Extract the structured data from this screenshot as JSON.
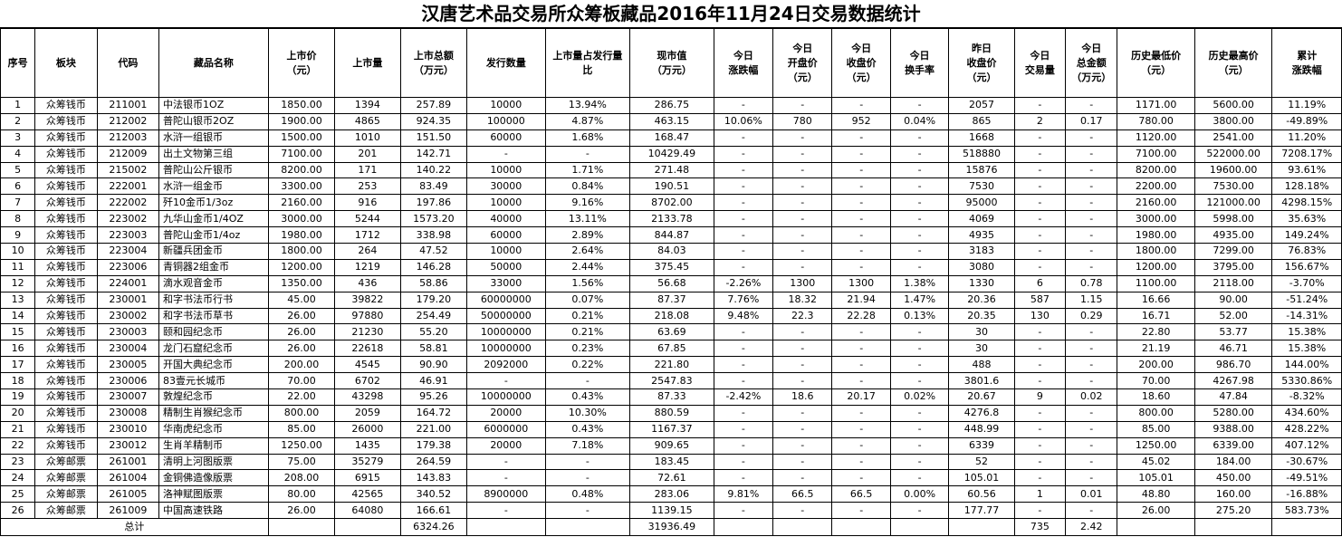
{
  "title": "汉唐艺术品交易所众筹板藏品2016年11月24日交易数据统计",
  "columns": [
    {
      "key": "seq",
      "label": "序号"
    },
    {
      "key": "board",
      "label": "板块"
    },
    {
      "key": "code",
      "label": "代码"
    },
    {
      "key": "name",
      "label": "藏品名称"
    },
    {
      "key": "list_price",
      "label": "上市价\n（元）"
    },
    {
      "key": "list_qty",
      "label": "上市量"
    },
    {
      "key": "list_total",
      "label": "上市总额\n（万元）"
    },
    {
      "key": "issue_qty",
      "label": "发行数量"
    },
    {
      "key": "ratio",
      "label": "上市量占发行量\n比"
    },
    {
      "key": "market_value",
      "label": "现市值\n（万元）"
    },
    {
      "key": "change",
      "label": "今日\n涨跌幅"
    },
    {
      "key": "open",
      "label": "今日\n开盘价\n（元）"
    },
    {
      "key": "close",
      "label": "今日\n收盘价\n（元）"
    },
    {
      "key": "turnover",
      "label": "今日\n换手率"
    },
    {
      "key": "prev_close",
      "label": "昨日\n收盘价\n（元）"
    },
    {
      "key": "volume",
      "label": "今日\n交易量"
    },
    {
      "key": "amount",
      "label": "今日\n总金额\n（万元）"
    },
    {
      "key": "hist_low",
      "label": "历史最低价\n（元）"
    },
    {
      "key": "hist_high",
      "label": "历史最高价\n（元）"
    },
    {
      "key": "cum_change",
      "label": "累计\n涨跌幅"
    }
  ],
  "rows": [
    [
      "1",
      "众筹钱币",
      "211001",
      "中法银币1OZ",
      "1850.00",
      "1394",
      "257.89",
      "10000",
      "13.94%",
      "286.75",
      "-",
      "-",
      "-",
      "-",
      "2057",
      "-",
      "-",
      "1171.00",
      "5600.00",
      "11.19%"
    ],
    [
      "2",
      "众筹钱币",
      "212002",
      "普陀山银币2OZ",
      "1900.00",
      "4865",
      "924.35",
      "100000",
      "4.87%",
      "463.15",
      "10.06%",
      "780",
      "952",
      "0.04%",
      "865",
      "2",
      "0.17",
      "780.00",
      "3800.00",
      "-49.89%"
    ],
    [
      "3",
      "众筹钱币",
      "212003",
      "水浒一组银币",
      "1500.00",
      "1010",
      "151.50",
      "60000",
      "1.68%",
      "168.47",
      "-",
      "-",
      "-",
      "-",
      "1668",
      "-",
      "-",
      "1120.00",
      "2541.00",
      "11.20%"
    ],
    [
      "4",
      "众筹钱币",
      "212009",
      "出土文物第三组",
      "7100.00",
      "201",
      "142.71",
      "-",
      "-",
      "10429.49",
      "-",
      "-",
      "-",
      "-",
      "518880",
      "-",
      "-",
      "7100.00",
      "522000.00",
      "7208.17%"
    ],
    [
      "5",
      "众筹钱币",
      "215002",
      "普陀山公斤银币",
      "8200.00",
      "171",
      "140.22",
      "10000",
      "1.71%",
      "271.48",
      "-",
      "-",
      "-",
      "-",
      "15876",
      "-",
      "-",
      "8200.00",
      "19600.00",
      "93.61%"
    ],
    [
      "6",
      "众筹钱币",
      "222001",
      "水浒一组金币",
      "3300.00",
      "253",
      "83.49",
      "30000",
      "0.84%",
      "190.51",
      "-",
      "-",
      "-",
      "-",
      "7530",
      "-",
      "-",
      "2200.00",
      "7530.00",
      "128.18%"
    ],
    [
      "7",
      "众筹钱币",
      "222002",
      "歼10金币1/3oz",
      "2160.00",
      "916",
      "197.86",
      "10000",
      "9.16%",
      "8702.00",
      "-",
      "-",
      "-",
      "-",
      "95000",
      "-",
      "-",
      "2160.00",
      "121000.00",
      "4298.15%"
    ],
    [
      "8",
      "众筹钱币",
      "223002",
      "九华山金币1/4OZ",
      "3000.00",
      "5244",
      "1573.20",
      "40000",
      "13.11%",
      "2133.78",
      "-",
      "-",
      "-",
      "-",
      "4069",
      "-",
      "-",
      "3000.00",
      "5998.00",
      "35.63%"
    ],
    [
      "9",
      "众筹钱币",
      "223003",
      "普陀山金币1/4oz",
      "1980.00",
      "1712",
      "338.98",
      "60000",
      "2.89%",
      "844.87",
      "-",
      "-",
      "-",
      "-",
      "4935",
      "-",
      "-",
      "1980.00",
      "4935.00",
      "149.24%"
    ],
    [
      "10",
      "众筹钱币",
      "223004",
      "新疆兵团金币",
      "1800.00",
      "264",
      "47.52",
      "10000",
      "2.64%",
      "84.03",
      "-",
      "-",
      "-",
      "-",
      "3183",
      "-",
      "-",
      "1800.00",
      "7299.00",
      "76.83%"
    ],
    [
      "11",
      "众筹钱币",
      "223006",
      "青铜器2组金币",
      "1200.00",
      "1219",
      "146.28",
      "50000",
      "2.44%",
      "375.45",
      "-",
      "-",
      "-",
      "-",
      "3080",
      "-",
      "-",
      "1200.00",
      "3795.00",
      "156.67%"
    ],
    [
      "12",
      "众筹钱币",
      "224001",
      "滴水观音金币",
      "1350.00",
      "436",
      "58.86",
      "33000",
      "1.56%",
      "56.68",
      "-2.26%",
      "1300",
      "1300",
      "1.38%",
      "1330",
      "6",
      "0.78",
      "1100.00",
      "2118.00",
      "-3.70%"
    ],
    [
      "13",
      "众筹钱币",
      "230001",
      "和字书法币行书",
      "45.00",
      "39822",
      "179.20",
      "60000000",
      "0.07%",
      "87.37",
      "7.76%",
      "18.32",
      "21.94",
      "1.47%",
      "20.36",
      "587",
      "1.15",
      "16.66",
      "90.00",
      "-51.24%"
    ],
    [
      "14",
      "众筹钱币",
      "230002",
      "和字书法币草书",
      "26.00",
      "97880",
      "254.49",
      "50000000",
      "0.21%",
      "218.08",
      "9.48%",
      "22.3",
      "22.28",
      "0.13%",
      "20.35",
      "130",
      "0.29",
      "16.71",
      "52.00",
      "-14.31%"
    ],
    [
      "15",
      "众筹钱币",
      "230003",
      "颐和园纪念币",
      "26.00",
      "21230",
      "55.20",
      "10000000",
      "0.21%",
      "63.69",
      "-",
      "-",
      "-",
      "-",
      "30",
      "-",
      "-",
      "22.80",
      "53.77",
      "15.38%"
    ],
    [
      "16",
      "众筹钱币",
      "230004",
      "龙门石窟纪念币",
      "26.00",
      "22618",
      "58.81",
      "10000000",
      "0.23%",
      "67.85",
      "-",
      "-",
      "-",
      "-",
      "30",
      "-",
      "-",
      "21.19",
      "46.71",
      "15.38%"
    ],
    [
      "17",
      "众筹钱币",
      "230005",
      "开国大典纪念币",
      "200.00",
      "4545",
      "90.90",
      "2092000",
      "0.22%",
      "221.80",
      "-",
      "-",
      "-",
      "-",
      "488",
      "-",
      "-",
      "200.00",
      "986.70",
      "144.00%"
    ],
    [
      "18",
      "众筹钱币",
      "230006",
      "83壹元长城币",
      "70.00",
      "6702",
      "46.91",
      "-",
      "-",
      "2547.83",
      "-",
      "-",
      "-",
      "-",
      "3801.6",
      "-",
      "-",
      "70.00",
      "4267.98",
      "5330.86%"
    ],
    [
      "19",
      "众筹钱币",
      "230007",
      "敦煌纪念币",
      "22.00",
      "43298",
      "95.26",
      "10000000",
      "0.43%",
      "87.33",
      "-2.42%",
      "18.6",
      "20.17",
      "0.02%",
      "20.67",
      "9",
      "0.02",
      "18.60",
      "47.84",
      "-8.32%"
    ],
    [
      "20",
      "众筹钱币",
      "230008",
      "精制生肖猴纪念币",
      "800.00",
      "2059",
      "164.72",
      "20000",
      "10.30%",
      "880.59",
      "-",
      "-",
      "-",
      "-",
      "4276.8",
      "-",
      "-",
      "800.00",
      "5280.00",
      "434.60%"
    ],
    [
      "21",
      "众筹钱币",
      "230010",
      "华南虎纪念币",
      "85.00",
      "26000",
      "221.00",
      "6000000",
      "0.43%",
      "1167.37",
      "-",
      "-",
      "-",
      "-",
      "448.99",
      "-",
      "-",
      "85.00",
      "9388.00",
      "428.22%"
    ],
    [
      "22",
      "众筹钱币",
      "230012",
      "生肖羊精制币",
      "1250.00",
      "1435",
      "179.38",
      "20000",
      "7.18%",
      "909.65",
      "-",
      "-",
      "-",
      "-",
      "6339",
      "-",
      "-",
      "1250.00",
      "6339.00",
      "407.12%"
    ],
    [
      "23",
      "众筹邮票",
      "261001",
      "清明上河图版票",
      "75.00",
      "35279",
      "264.59",
      "-",
      "-",
      "183.45",
      "-",
      "-",
      "-",
      "-",
      "52",
      "-",
      "-",
      "45.02",
      "184.00",
      "-30.67%"
    ],
    [
      "24",
      "众筹邮票",
      "261004",
      "金铜佛造像版票",
      "208.00",
      "6915",
      "143.83",
      "-",
      "-",
      "72.61",
      "-",
      "-",
      "-",
      "-",
      "105.01",
      "-",
      "-",
      "105.01",
      "450.00",
      "-49.51%"
    ],
    [
      "25",
      "众筹邮票",
      "261005",
      "洛神赋图版票",
      "80.00",
      "42565",
      "340.52",
      "8900000",
      "0.48%",
      "283.06",
      "9.81%",
      "66.5",
      "66.5",
      "0.00%",
      "60.56",
      "1",
      "0.01",
      "48.80",
      "160.00",
      "-16.88%"
    ],
    [
      "26",
      "众筹邮票",
      "261009",
      "中国高速铁路",
      "26.00",
      "64080",
      "166.61",
      "-",
      "-",
      "1139.15",
      "-",
      "-",
      "-",
      "-",
      "177.77",
      "-",
      "-",
      "26.00",
      "275.20",
      "583.73%"
    ]
  ],
  "total": {
    "label": "总计",
    "list_total": "6324.26",
    "market_value": "31936.49",
    "volume": "735",
    "amount": "2.42"
  }
}
